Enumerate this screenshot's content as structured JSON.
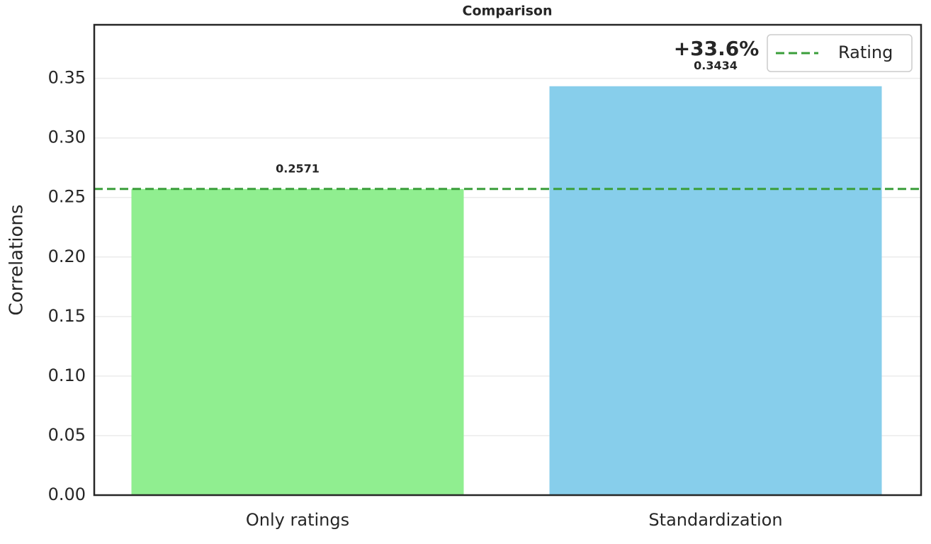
{
  "chart_data": {
    "type": "bar",
    "title": "Comparison",
    "y_label": "Correlations",
    "categories": [
      "Only ratings",
      "Standardization"
    ],
    "values": [
      0.2571,
      0.3434
    ],
    "colors": [
      "#90ee90",
      "#87ceeb"
    ],
    "ylim": [
      0,
      0.395
    ],
    "yticks": [
      {
        "value": 0,
        "label": "0.00"
      },
      0.05,
      {
        "value": 0.1,
        "label": "0.10"
      },
      0.15,
      {
        "value": 0.2,
        "label": "0.20"
      },
      0.25,
      {
        "value": 0.3,
        "label": "0.30"
      },
      0.35
    ],
    "grid": true,
    "reference_line": {
      "name": "Rating",
      "value": 0.2571,
      "color": "#3a9e3a",
      "style": "dashed"
    },
    "annotation": {
      "text": "+33.6%",
      "color": "#0000ff"
    },
    "legend": "upper right"
  }
}
